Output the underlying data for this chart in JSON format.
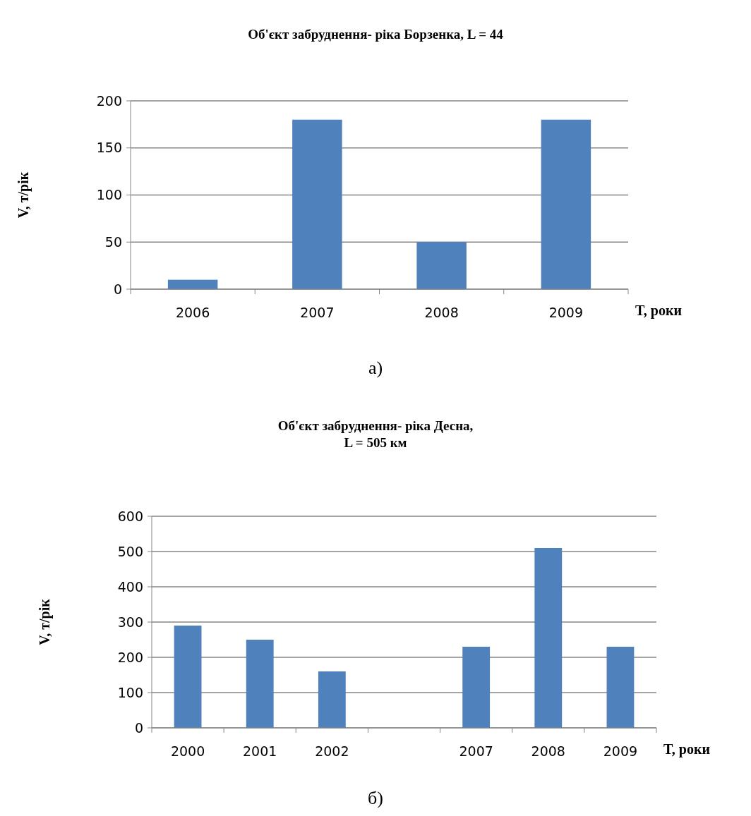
{
  "chart_data": [
    {
      "type": "bar",
      "title": "Об'єкт забруднення- ріка Борзенка, L = 44",
      "xlabel": "T, роки",
      "ylabel": "V, т/рік",
      "categories": [
        "2006",
        "2007",
        "2008",
        "2009"
      ],
      "values": [
        10,
        180,
        50,
        180
      ],
      "color": "#4f81bd",
      "ylim": [
        0,
        200
      ],
      "yticks": [
        0,
        50,
        100,
        150,
        200
      ],
      "grid": "y",
      "annotations": [
        "а)"
      ]
    },
    {
      "type": "bar",
      "title": "Об'єкт забруднення- ріка Десна,\nL = 505 км",
      "xlabel": "T, роки",
      "ylabel": "V, т/рік",
      "categories": [
        "2000",
        "2001",
        "2002",
        null,
        "2007",
        "2008",
        "2009"
      ],
      "values": [
        290,
        250,
        160,
        null,
        230,
        510,
        230
      ],
      "color": "#4f81bd",
      "ylim": [
        0,
        600
      ],
      "yticks": [
        0,
        100,
        200,
        300,
        400,
        500,
        600
      ],
      "grid": "y",
      "annotations": [
        "б)"
      ]
    }
  ]
}
